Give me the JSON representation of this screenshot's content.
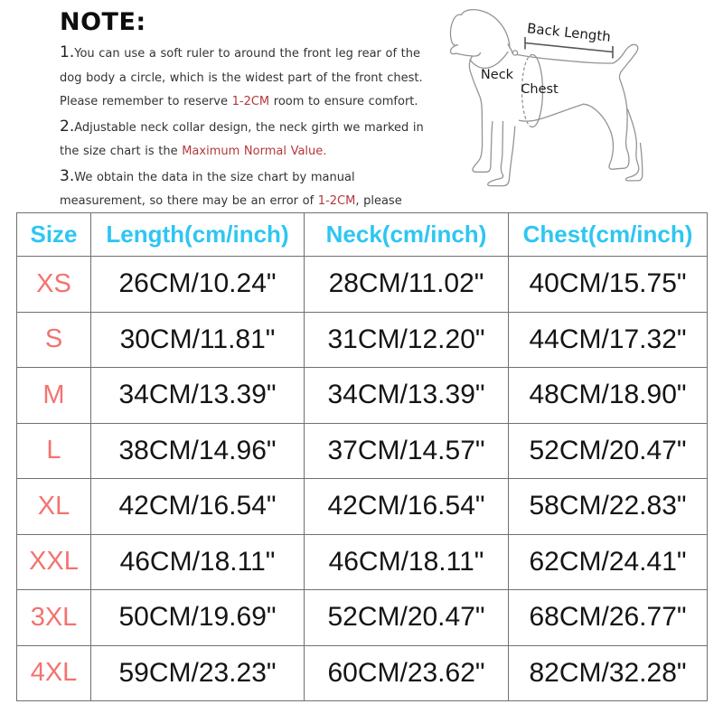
{
  "notes": {
    "title": "NOTE:",
    "items": [
      {
        "number": "1.",
        "segments": [
          {
            "text": "You can use a soft ruler to around the front leg rear of the dog body a circle, which is the widest part of the front chest. Please remember to reserve "
          },
          {
            "text": "1-2CM",
            "red": true
          },
          {
            "text": " room to ensure comfort."
          }
        ]
      },
      {
        "number": "2.",
        "segments": [
          {
            "text": "Adjustable neck collar design, the neck girth we marked in the size chart is the "
          },
          {
            "text": "Maximum Normal Value.",
            "red": true
          }
        ]
      },
      {
        "number": "3.",
        "segments": [
          {
            "text": "We obtain the data in the size chart by manual measurement, so there may be an error of "
          },
          {
            "text": "1-2CM",
            "red": true
          },
          {
            "text": ", please understand."
          }
        ]
      }
    ]
  },
  "diagram": {
    "labels": {
      "back_length": "Back Length",
      "neck": "Neck",
      "chest": "Chest"
    }
  },
  "table": {
    "columns": [
      "Size",
      "Length(cm/inch)",
      "Neck(cm/inch)",
      "Chest(cm/inch)"
    ],
    "rows": [
      {
        "size": "XS",
        "length": "26CM/10.24\"",
        "neck": "28CM/11.02\"",
        "chest": "40CM/15.75\""
      },
      {
        "size": "S",
        "length": "30CM/11.81\"",
        "neck": "31CM/12.20\"",
        "chest": "44CM/17.32\""
      },
      {
        "size": "M",
        "length": "34CM/13.39\"",
        "neck": "34CM/13.39\"",
        "chest": "48CM/18.90\""
      },
      {
        "size": "L",
        "length": "38CM/14.96\"",
        "neck": "37CM/14.57\"",
        "chest": "52CM/20.47\""
      },
      {
        "size": "XL",
        "length": "42CM/16.54\"",
        "neck": "42CM/16.54\"",
        "chest": "58CM/22.83\""
      },
      {
        "size": "XXL",
        "length": "46CM/18.11\"",
        "neck": "46CM/18.11\"",
        "chest": "62CM/24.41\""
      },
      {
        "size": "3XL",
        "length": "50CM/19.69\"",
        "neck": "52CM/20.47\"",
        "chest": "68CM/26.77\""
      },
      {
        "size": "4XL",
        "length": "59CM/23.23\"",
        "neck": "60CM/23.62\"",
        "chest": "82CM/32.28\""
      }
    ]
  },
  "colors": {
    "table_header": "#2ec6f2",
    "size_label": "#f3736f",
    "note_highlight": "#b5373c"
  }
}
